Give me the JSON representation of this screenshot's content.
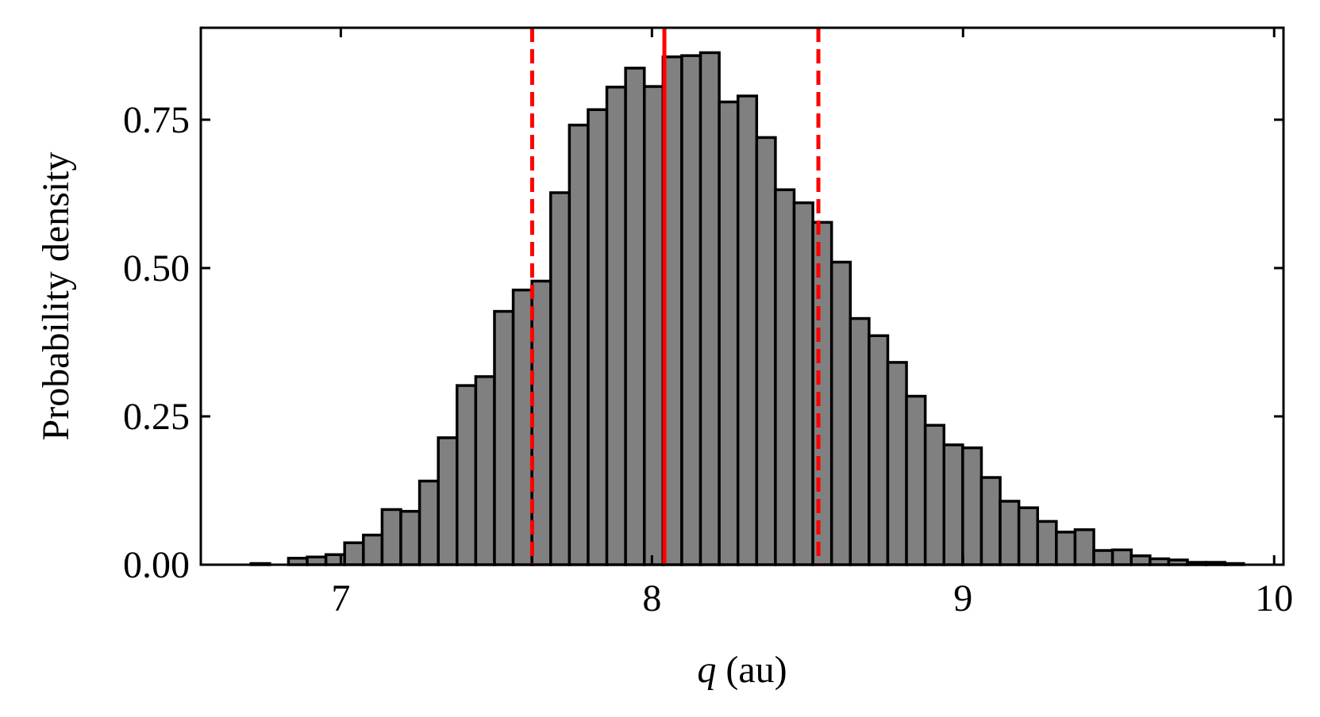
{
  "chart_data": {
    "type": "bar",
    "title": "",
    "xlabel_var": "q",
    "xlabel_unit": " (au)",
    "ylabel": "Probability density",
    "xlim": [
      6.55,
      10.03
    ],
    "ylim": [
      0,
      0.905
    ],
    "xticks": [
      7,
      8,
      9,
      10
    ],
    "xtick_labels": [
      "7",
      "8",
      "9",
      "10"
    ],
    "yticks": [
      0,
      0.25,
      0.5,
      0.75
    ],
    "ytick_labels": [
      "0.00",
      "0.25",
      "0.50",
      "0.75"
    ],
    "bin_edges": [
      6.7113,
      6.7715,
      6.8317,
      6.8919,
      6.9521,
      7.0123,
      7.0725,
      7.1327,
      7.1929,
      7.2531,
      7.3133,
      7.3735,
      7.4337,
      7.4939,
      7.5541,
      7.6143,
      7.6745,
      7.7347,
      7.7949,
      7.8551,
      7.9153,
      7.9755,
      8.0357,
      8.0959,
      8.1561,
      8.2163,
      8.2765,
      8.3367,
      8.3969,
      8.4571,
      8.5173,
      8.5775,
      8.6377,
      8.6979,
      8.7581,
      8.8183,
      8.8785,
      8.9387,
      8.9989,
      9.0591,
      9.1193,
      9.1795,
      9.2397,
      9.2999,
      9.3601,
      9.4203,
      9.4805,
      9.5407,
      9.6009,
      9.6611,
      9.7213,
      9.7815,
      9.8417,
      9.9019
    ],
    "values": [
      0.002,
      0.0,
      0.011,
      0.013,
      0.017,
      0.037,
      0.05,
      0.093,
      0.09,
      0.141,
      0.214,
      0.302,
      0.317,
      0.427,
      0.463,
      0.478,
      0.627,
      0.741,
      0.767,
      0.805,
      0.837,
      0.806,
      0.856,
      0.858,
      0.863,
      0.78,
      0.79,
      0.72,
      0.632,
      0.61,
      0.577,
      0.51,
      0.415,
      0.386,
      0.341,
      0.284,
      0.235,
      0.202,
      0.197,
      0.147,
      0.107,
      0.096,
      0.073,
      0.055,
      0.059,
      0.024,
      0.025,
      0.015,
      0.01,
      0.008,
      0.004,
      0.004,
      0.002
    ],
    "bar_color": "#808080",
    "edge_color": "#000000",
    "vlines": [
      {
        "x": 8.04,
        "style": "solid",
        "color": "#ff0000"
      },
      {
        "x": 7.615,
        "style": "dashed",
        "color": "#ff0000"
      },
      {
        "x": 8.535,
        "style": "dashed",
        "color": "#ff0000"
      }
    ],
    "grid": false
  }
}
